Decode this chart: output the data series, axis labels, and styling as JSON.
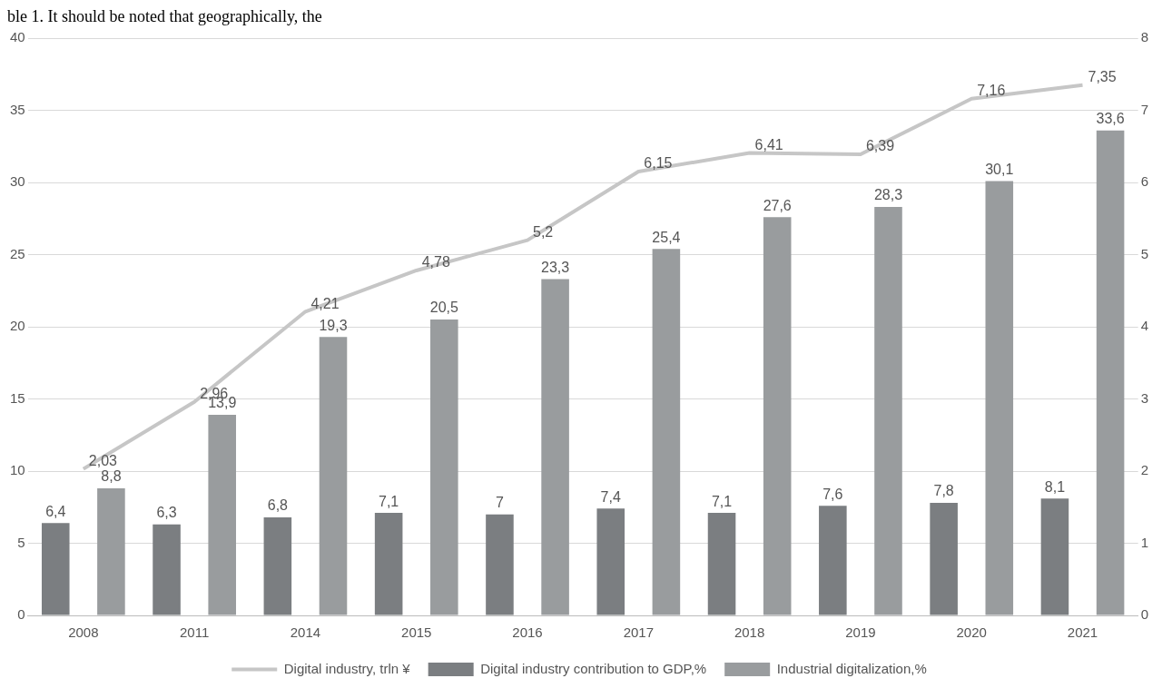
{
  "chart_data": {
    "type": "bar",
    "annotations": [
      "ble 1. It should be noted that geographically, the"
    ],
    "categories": [
      "2008",
      "2011",
      "2014",
      "2015",
      "2016",
      "2017",
      "2018",
      "2019",
      "2020",
      "2021"
    ],
    "series": [
      {
        "name": "Digital industry contribution to GDP,%",
        "color": "#7b7e81",
        "values": [
          6.4,
          6.3,
          6.8,
          7.1,
          7,
          7.4,
          7.1,
          7.6,
          7.8,
          8.1
        ],
        "value_labels": [
          "6,4",
          "6,3",
          "6,8",
          "7,1",
          "7",
          "7,4",
          "7,1",
          "7,6",
          "7,8",
          "8,1"
        ]
      },
      {
        "name": "Industrial digitalization,%",
        "color": "#999c9e",
        "values": [
          8.8,
          13.9,
          19.3,
          20.5,
          23.3,
          25.4,
          27.6,
          28.3,
          30.1,
          33.6
        ],
        "value_labels": [
          "8,8",
          "13,9",
          "19,3",
          "20,5",
          "23,3",
          "25,4",
          "27,6",
          "28,3",
          "30,1",
          "33,6"
        ]
      },
      {
        "name": "Digital industry, trln ¥",
        "type": "line",
        "axis": "y2",
        "color": "#c6c6c6",
        "values": [
          2.03,
          2.96,
          4.21,
          4.78,
          5.2,
          6.15,
          6.41,
          6.39,
          7.16,
          7.35
        ],
        "value_labels": [
          "2,03",
          "2,96",
          "4,21",
          "4,78",
          "5,2",
          "6,15",
          "6,41",
          "6,39",
          "7,16",
          "7,35"
        ]
      }
    ],
    "ylim": [
      0,
      40
    ],
    "yticks": [
      0,
      5,
      10,
      15,
      20,
      25,
      30,
      35,
      40
    ],
    "y2lim": [
      0,
      8
    ],
    "y2ticks": [
      0,
      1,
      2,
      3,
      4,
      5,
      6,
      7,
      8
    ],
    "grid": "y",
    "legend": "bottom",
    "marker": "none"
  }
}
